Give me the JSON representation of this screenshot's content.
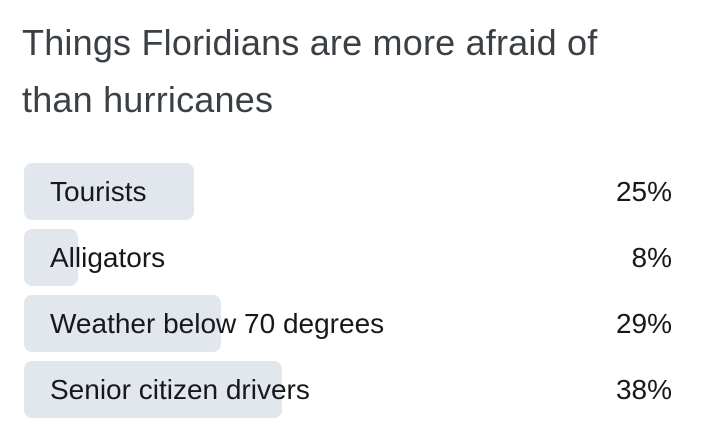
{
  "title": {
    "line1": "Things Floridians are more afraid of",
    "line2": "than hurricanes"
  },
  "poll": {
    "bar_color": "#e2e7ed",
    "text_color": "#16181c",
    "title_color": "#3b4045",
    "items": [
      {
        "label": "Tourists",
        "value": 25,
        "percent_label": "25%"
      },
      {
        "label": "Alligators",
        "value": 8,
        "percent_label": "8%"
      },
      {
        "label": "Weather below 70 degrees",
        "value": 29,
        "percent_label": "29%"
      },
      {
        "label": "Senior citizen drivers",
        "value": 38,
        "percent_label": "38%"
      }
    ]
  },
  "chart_data": {
    "type": "bar",
    "orientation": "horizontal",
    "title": "Things Floridians are more afraid of than hurricanes",
    "categories": [
      "Tourists",
      "Alligators",
      "Weather below 70 degrees",
      "Senior citizen drivers"
    ],
    "values": [
      25,
      8,
      29,
      38
    ],
    "data_labels": [
      "25%",
      "8%",
      "29%",
      "38%"
    ],
    "unit": "%",
    "xlim": [
      0,
      100
    ],
    "grid": false,
    "legend": false,
    "bar_color": "#e2e7ed"
  }
}
